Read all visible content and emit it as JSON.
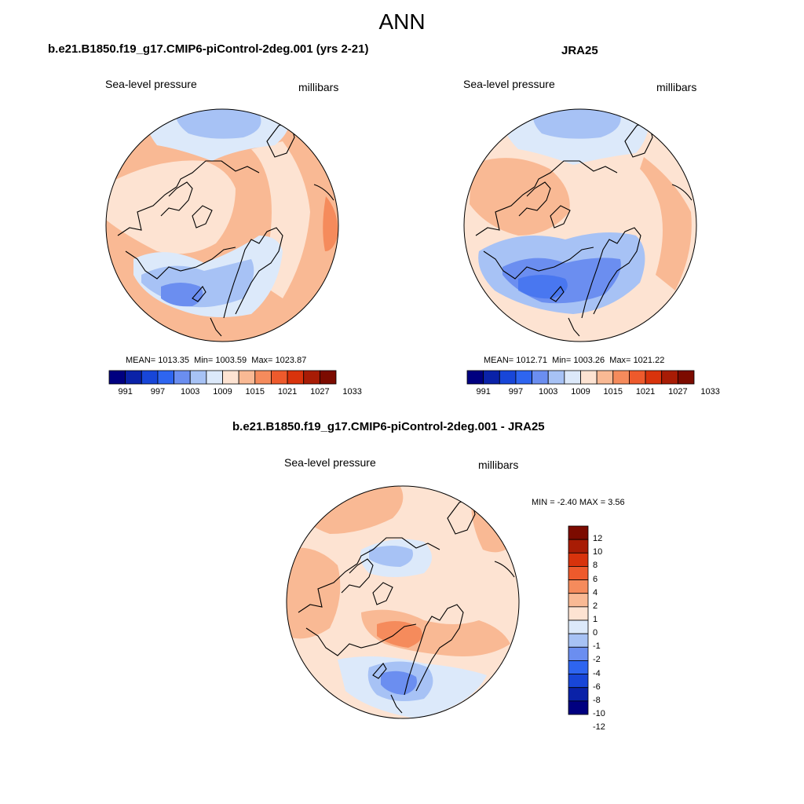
{
  "figure": {
    "title": "ANN"
  },
  "colors": {
    "bwr_12": [
      "#000080",
      "#0a22a8",
      "#1846d8",
      "#2e65f0",
      "#6b8ef0",
      "#a7c2f5",
      "#dce9fa",
      "#fde3d2",
      "#f9b994",
      "#f58b5c",
      "#ee5a2c",
      "#d8330c",
      "#a81c05",
      "#7c0b00"
    ],
    "diff_14": [
      "#7c0b00",
      "#a81c05",
      "#d8330c",
      "#ee5a2c",
      "#f58b5c",
      "#f9b994",
      "#fde3d2",
      "#dce9fa",
      "#a7c2f5",
      "#6b8ef0",
      "#2e65f0",
      "#1846d8",
      "#0a22a8",
      "#000080"
    ]
  },
  "panels": {
    "model": {
      "title": "b.e21.B1850.f19_g17.CMIP6-piControl-2deg.001 (yrs 2-21)",
      "variable": "Sea-level pressure",
      "units": "millibars",
      "mean_label": "MEAN=",
      "mean": "1013.35",
      "min_label": "Min=",
      "min": "1003.59",
      "max_label": "Max=",
      "max": "1023.87"
    },
    "obs": {
      "title": "JRA25",
      "variable": "Sea-level pressure",
      "units": "millibars",
      "mean_label": "MEAN=",
      "mean": "1012.71",
      "min_label": "Min=",
      "min": "1003.26",
      "max_label": "Max=",
      "max": "1021.22"
    },
    "diff": {
      "title": "b.e21.B1850.f19_g17.CMIP6-piControl-2deg.001 - JRA25",
      "variable": "Sea-level pressure",
      "units": "millibars",
      "min_label": "MIN =",
      "min": "-2.40",
      "max_label": "MAX =",
      "max": "3.56"
    }
  },
  "colorbars": {
    "mean_ticks": [
      "991",
      "997",
      "1003",
      "1009",
      "1015",
      "1021",
      "1027",
      "1033"
    ],
    "diff_ticks": [
      "12",
      "10",
      "8",
      "6",
      "4",
      "2",
      "1",
      "0",
      "-1",
      "-2",
      "-4",
      "-6",
      "-8",
      "-10",
      "-12"
    ]
  }
}
